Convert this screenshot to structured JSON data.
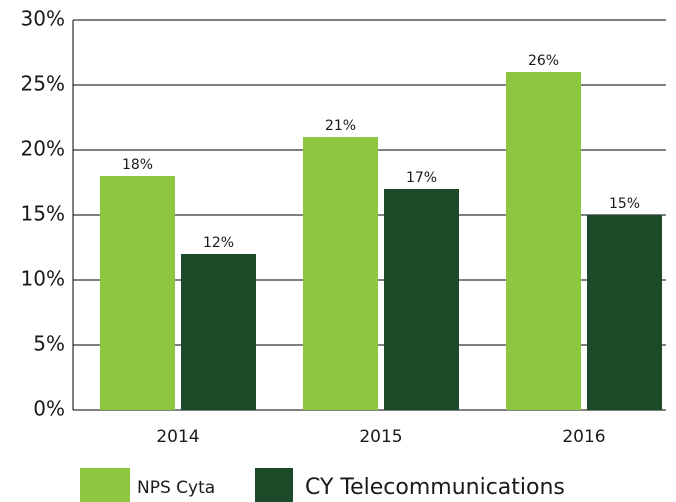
{
  "chart_data": {
    "type": "bar",
    "categories": [
      "2014",
      "2015",
      "2016"
    ],
    "series": [
      {
        "name": "NPS Cyta",
        "color": "#8dc63f",
        "values": [
          18,
          21,
          26
        ],
        "value_labels": [
          "18%",
          "21%",
          "26%"
        ]
      },
      {
        "name": "CY Telecommunications",
        "color": "#1a4a27",
        "values": [
          12,
          17,
          15
        ],
        "value_labels": [
          "12%",
          "17%",
          "15%"
        ]
      }
    ],
    "ylim": [
      0,
      30
    ],
    "yticks": [
      {
        "value": 0,
        "label": "0%"
      },
      {
        "value": 5,
        "label": "5%"
      },
      {
        "value": 10,
        "label": "10%"
      },
      {
        "value": 15,
        "label": "15%"
      },
      {
        "value": 20,
        "label": "20%"
      },
      {
        "value": 25,
        "label": "25%"
      },
      {
        "value": 30,
        "label": "30%"
      }
    ],
    "grid": true,
    "legend": "bottom"
  }
}
